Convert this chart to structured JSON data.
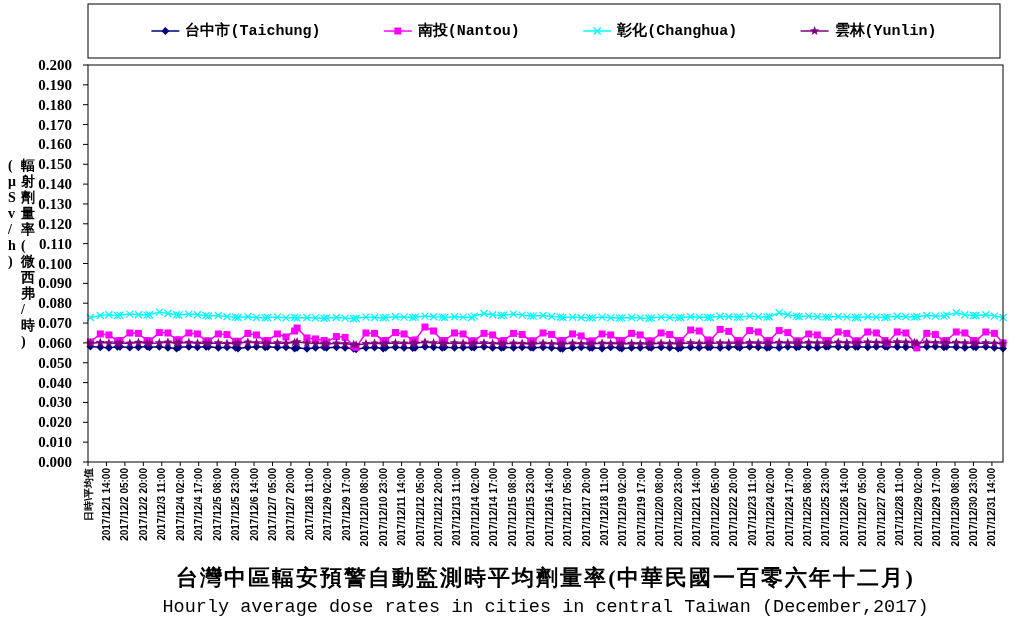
{
  "chart_data": {
    "type": "line",
    "title": "台灣中區輻安預警自動監測時平均劑量率(中華民國一百零六年十二月)",
    "subtitle": "Hourly average dose rates in cities in central Taiwan (December,2017)",
    "ylabel": "輻射劑量率(微西弗/時)\n(μSv/h)",
    "xlim": [
      "2017-11-30T23:00",
      "2017-12-31T23:00"
    ],
    "xticks": [
      {
        "value": "2017-11-30T23:00",
        "label": "日時\\平均值"
      },
      {
        "value": "2017-12-01T14:00",
        "label": "2017/12/1 14:00"
      },
      {
        "value": "2017-12-02T05:00",
        "label": "2017/12/2 05:00"
      },
      {
        "value": "2017-12-02T20:00",
        "label": "2017/12/2 20:00"
      },
      {
        "value": "2017-12-03T11:00",
        "label": "2017/12/3 11:00"
      },
      {
        "value": "2017-12-04T02:00",
        "label": "2017/12/4 02:00"
      },
      {
        "value": "2017-12-04T17:00",
        "label": "2017/12/4 17:00"
      },
      {
        "value": "2017-12-05T08:00",
        "label": "2017/12/5 08:00"
      },
      {
        "value": "2017-12-05T23:00",
        "label": "2017/12/5 23:00"
      },
      {
        "value": "2017-12-06T14:00",
        "label": "2017/12/6 14:00"
      },
      {
        "value": "2017-12-07T05:00",
        "label": "2017/12/7 05:00"
      },
      {
        "value": "2017-12-07T20:00",
        "label": "2017/12/7 20:00"
      },
      {
        "value": "2017-12-08T11:00",
        "label": "2017/12/8 11:00"
      },
      {
        "value": "2017-12-09T02:00",
        "label": "2017/12/9 02:00"
      },
      {
        "value": "2017-12-09T17:00",
        "label": "2017/12/9 17:00"
      },
      {
        "value": "2017-12-10T08:00",
        "label": "2017/12/10 08:00"
      },
      {
        "value": "2017-12-10T23:00",
        "label": "2017/12/10 23:00"
      },
      {
        "value": "2017-12-11T14:00",
        "label": "2017/12/11 14:00"
      },
      {
        "value": "2017-12-12T05:00",
        "label": "2017/12/12 05:00"
      },
      {
        "value": "2017-12-12T20:00",
        "label": "2017/12/12 20:00"
      },
      {
        "value": "2017-12-13T11:00",
        "label": "2017/12/13 11:00"
      },
      {
        "value": "2017-12-14T02:00",
        "label": "2017/12/14 02:00"
      },
      {
        "value": "2017-12-14T17:00",
        "label": "2017/12/14 17:00"
      },
      {
        "value": "2017-12-15T08:00",
        "label": "2017/12/15 08:00"
      },
      {
        "value": "2017-12-15T23:00",
        "label": "2017/12/15 23:00"
      },
      {
        "value": "2017-12-16T14:00",
        "label": "2017/12/16 14:00"
      },
      {
        "value": "2017-12-17T05:00",
        "label": "2017/12/17 05:00"
      },
      {
        "value": "2017-12-17T20:00",
        "label": "2017/12/17 20:00"
      },
      {
        "value": "2017-12-18T11:00",
        "label": "2017/12/18 11:00"
      },
      {
        "value": "2017-12-19T02:00",
        "label": "2017/12/19 02:00"
      },
      {
        "value": "2017-12-19T17:00",
        "label": "2017/12/19 17:00"
      },
      {
        "value": "2017-12-20T08:00",
        "label": "2017/12/20 08:00"
      },
      {
        "value": "2017-12-20T23:00",
        "label": "2017/12/20 23:00"
      },
      {
        "value": "2017-12-21T14:00",
        "label": "2017/12/21 14:00"
      },
      {
        "value": "2017-12-22T05:00",
        "label": "2017/12/22 05:00"
      },
      {
        "value": "2017-12-22T20:00",
        "label": "2017/12/22 20:00"
      },
      {
        "value": "2017-12-23T11:00",
        "label": "2017/12/23 11:00"
      },
      {
        "value": "2017-12-24T02:00",
        "label": "2017/12/24 02:00"
      },
      {
        "value": "2017-12-24T17:00",
        "label": "2017/12/24 17:00"
      },
      {
        "value": "2017-12-25T08:00",
        "label": "2017/12/25 08:00"
      },
      {
        "value": "2017-12-25T23:00",
        "label": "2017/12/25 23:00"
      },
      {
        "value": "2017-12-26T14:00",
        "label": "2017/12/26 14:00"
      },
      {
        "value": "2017-12-27T05:00",
        "label": "2017/12/27 05:00"
      },
      {
        "value": "2017-12-27T20:00",
        "label": "2017/12/27 20:00"
      },
      {
        "value": "2017-12-28T11:00",
        "label": "2017/12/28 11:00"
      },
      {
        "value": "2017-12-29T02:00",
        "label": "2017/12/29 02:00"
      },
      {
        "value": "2017-12-29T17:00",
        "label": "2017/12/29 17:00"
      },
      {
        "value": "2017-12-30T08:00",
        "label": "2017/12/30 08:00"
      },
      {
        "value": "2017-12-30T23:00",
        "label": "2017/12/30 23:00"
      },
      {
        "value": "2017-12-31T14:00",
        "label": "2017/12/31 14:00"
      }
    ],
    "ylim": [
      0,
      0.2
    ],
    "yticks": [
      {
        "value": 0,
        "label": "0.000"
      },
      {
        "value": 0.01,
        "label": "0.010"
      },
      {
        "value": 0.02,
        "label": "0.020"
      },
      {
        "value": 0.03,
        "label": "0.030"
      },
      {
        "value": 0.04,
        "label": "0.040"
      },
      {
        "value": 0.05,
        "label": "0.050"
      },
      {
        "value": 0.06,
        "label": "0.060"
      },
      {
        "value": 0.07,
        "label": "0.070"
      },
      {
        "value": 0.08,
        "label": "0.080"
      },
      {
        "value": 0.09,
        "label": "0.090"
      },
      {
        "value": 0.1,
        "label": "0.100"
      },
      {
        "value": 0.11,
        "label": "0.110"
      },
      {
        "value": 0.12,
        "label": "0.120"
      },
      {
        "value": 0.13,
        "label": "0.130"
      },
      {
        "value": 0.14,
        "label": "0.140"
      },
      {
        "value": 0.15,
        "label": "0.150"
      },
      {
        "value": 0.16,
        "label": "0.160"
      },
      {
        "value": 0.17,
        "label": "0.170"
      },
      {
        "value": 0.18,
        "label": "0.180"
      },
      {
        "value": 0.19,
        "label": "0.190"
      },
      {
        "value": 0.2,
        "label": "0.200"
      }
    ],
    "grid": false,
    "legend": "top",
    "line_style": "solid",
    "x": [
      "2017-12-01T01:00",
      "2017-12-01T09:00",
      "2017-12-01T16:00",
      "2017-12-01T23:00",
      "2017-12-02T01:00",
      "2017-12-02T09:00",
      "2017-12-02T16:00",
      "2017-12-02T23:00",
      "2017-12-03T01:00",
      "2017-12-03T09:00",
      "2017-12-03T16:00",
      "2017-12-03T23:00",
      "2017-12-04T01:00",
      "2017-12-04T09:00",
      "2017-12-04T16:00",
      "2017-12-04T23:00",
      "2017-12-05T01:00",
      "2017-12-05T09:00",
      "2017-12-05T16:00",
      "2017-12-05T23:00",
      "2017-12-06T01:00",
      "2017-12-06T09:00",
      "2017-12-06T16:00",
      "2017-12-06T23:00",
      "2017-12-07T01:00",
      "2017-12-07T09:00",
      "2017-12-07T16:00",
      "2017-12-07T23:00",
      "2017-12-08T01:00",
      "2017-12-08T09:00",
      "2017-12-08T16:00",
      "2017-12-08T23:00",
      "2017-12-09T01:00",
      "2017-12-09T09:00",
      "2017-12-09T16:00",
      "2017-12-09T23:00",
      "2017-12-10T01:00",
      "2017-12-10T09:00",
      "2017-12-10T16:00",
      "2017-12-10T23:00",
      "2017-12-11T01:00",
      "2017-12-11T09:00",
      "2017-12-11T16:00",
      "2017-12-11T23:00",
      "2017-12-12T01:00",
      "2017-12-12T09:00",
      "2017-12-12T16:00",
      "2017-12-12T23:00",
      "2017-12-13T01:00",
      "2017-12-13T09:00",
      "2017-12-13T16:00",
      "2017-12-13T23:00",
      "2017-12-14T01:00",
      "2017-12-14T09:00",
      "2017-12-14T16:00",
      "2017-12-14T23:00",
      "2017-12-15T01:00",
      "2017-12-15T09:00",
      "2017-12-15T16:00",
      "2017-12-15T23:00",
      "2017-12-16T01:00",
      "2017-12-16T09:00",
      "2017-12-16T16:00",
      "2017-12-16T23:00",
      "2017-12-17T01:00",
      "2017-12-17T09:00",
      "2017-12-17T16:00",
      "2017-12-17T23:00",
      "2017-12-18T01:00",
      "2017-12-18T09:00",
      "2017-12-18T16:00",
      "2017-12-18T23:00",
      "2017-12-19T01:00",
      "2017-12-19T09:00",
      "2017-12-19T16:00",
      "2017-12-19T23:00",
      "2017-12-20T01:00",
      "2017-12-20T09:00",
      "2017-12-20T16:00",
      "2017-12-20T23:00",
      "2017-12-21T01:00",
      "2017-12-21T09:00",
      "2017-12-21T16:00",
      "2017-12-21T23:00",
      "2017-12-22T01:00",
      "2017-12-22T09:00",
      "2017-12-22T16:00",
      "2017-12-22T23:00",
      "2017-12-23T01:00",
      "2017-12-23T09:00",
      "2017-12-23T16:00",
      "2017-12-23T23:00",
      "2017-12-24T01:00",
      "2017-12-24T09:00",
      "2017-12-24T16:00",
      "2017-12-24T23:00",
      "2017-12-25T01:00",
      "2017-12-25T09:00",
      "2017-12-25T16:00",
      "2017-12-25T23:00",
      "2017-12-26T01:00",
      "2017-12-26T09:00",
      "2017-12-26T16:00",
      "2017-12-26T23:00",
      "2017-12-27T01:00",
      "2017-12-27T09:00",
      "2017-12-27T16:00",
      "2017-12-27T23:00",
      "2017-12-28T01:00",
      "2017-12-28T09:00",
      "2017-12-28T16:00",
      "2017-12-28T23:00",
      "2017-12-29T01:00",
      "2017-12-29T09:00",
      "2017-12-29T16:00",
      "2017-12-29T23:00",
      "2017-12-30T01:00",
      "2017-12-30T09:00",
      "2017-12-30T16:00",
      "2017-12-30T23:00",
      "2017-12-31T01:00",
      "2017-12-31T09:00",
      "2017-12-31T16:00",
      "2017-12-31T23:00"
    ],
    "series": [
      {
        "name": "台中市(Taichung)",
        "color": "#000080",
        "marker": "diamond",
        "values": [
          0.0582,
          0.0578,
          0.0575,
          0.058,
          0.058,
          0.0577,
          0.0578,
          0.0582,
          0.0578,
          0.058,
          0.0576,
          0.0572,
          0.0578,
          0.058,
          0.0578,
          0.058,
          0.058,
          0.0576,
          0.0578,
          0.0575,
          0.0572,
          0.0578,
          0.058,
          0.0578,
          0.058,
          0.0577,
          0.0578,
          0.0572,
          0.0575,
          0.057,
          0.0575,
          0.0578,
          0.0576,
          0.0578,
          0.0575,
          0.057,
          0.0568,
          0.0575,
          0.0577,
          0.0572,
          0.0575,
          0.0578,
          0.0576,
          0.0574,
          0.0576,
          0.058,
          0.0578,
          0.0575,
          0.0578,
          0.0575,
          0.0577,
          0.0578,
          0.0577,
          0.058,
          0.0576,
          0.0575,
          0.0578,
          0.0576,
          0.0578,
          0.0577,
          0.0575,
          0.0578,
          0.0576,
          0.0572,
          0.057,
          0.0575,
          0.0578,
          0.0575,
          0.0576,
          0.0572,
          0.0578,
          0.0575,
          0.0572,
          0.0576,
          0.0575,
          0.0578,
          0.0575,
          0.0578,
          0.0576,
          0.0572,
          0.0576,
          0.0578,
          0.0575,
          0.0578,
          0.0578,
          0.0575,
          0.0578,
          0.058,
          0.0576,
          0.058,
          0.0578,
          0.0575,
          0.0578,
          0.0576,
          0.058,
          0.0578,
          0.058,
          0.0578,
          0.0576,
          0.058,
          0.0582,
          0.0579,
          0.0578,
          0.058,
          0.058,
          0.0578,
          0.058,
          0.0582,
          0.058,
          0.0579,
          0.0578,
          0.058,
          0.0578,
          0.058,
          0.0582,
          0.0578,
          0.058,
          0.0578,
          0.0576,
          0.058,
          0.0578,
          0.058,
          0.0576,
          0.0572
        ]
      },
      {
        "name": "南投(Nantou)",
        "color": "#ff00ff",
        "marker": "square",
        "values": [
          0.0605,
          0.0645,
          0.064,
          0.061,
          0.0612,
          0.065,
          0.0648,
          0.0612,
          0.061,
          0.0652,
          0.065,
          0.0615,
          0.0615,
          0.065,
          0.0645,
          0.061,
          0.061,
          0.0645,
          0.0642,
          0.0608,
          0.0608,
          0.0648,
          0.064,
          0.061,
          0.0612,
          0.0645,
          0.063,
          0.066,
          0.0675,
          0.0625,
          0.062,
          0.0612,
          0.0605,
          0.0632,
          0.0628,
          0.0585,
          0.0578,
          0.065,
          0.0648,
          0.061,
          0.0612,
          0.0652,
          0.0645,
          0.0612,
          0.0615,
          0.068,
          0.066,
          0.0612,
          0.0612,
          0.065,
          0.0645,
          0.061,
          0.061,
          0.0648,
          0.064,
          0.0608,
          0.0612,
          0.0648,
          0.0642,
          0.061,
          0.061,
          0.065,
          0.0642,
          0.061,
          0.0612,
          0.0645,
          0.0635,
          0.0608,
          0.061,
          0.0645,
          0.064,
          0.0612,
          0.0612,
          0.0648,
          0.064,
          0.061,
          0.061,
          0.065,
          0.0642,
          0.0612,
          0.0612,
          0.0665,
          0.066,
          0.0615,
          0.0612,
          0.0668,
          0.0658,
          0.0612,
          0.061,
          0.0662,
          0.0655,
          0.0612,
          0.0612,
          0.0662,
          0.0652,
          0.061,
          0.061,
          0.0645,
          0.064,
          0.0612,
          0.0612,
          0.0655,
          0.0648,
          0.061,
          0.061,
          0.0655,
          0.065,
          0.0612,
          0.06,
          0.0655,
          0.065,
          0.0598,
          0.0575,
          0.0648,
          0.0642,
          0.061,
          0.0612,
          0.0655,
          0.065,
          0.0612,
          0.061,
          0.0655,
          0.0648,
          0.06
        ]
      },
      {
        "name": "彰化(Changhua)",
        "color": "#00ffff",
        "marker": "cross",
        "values": [
          0.0728,
          0.0738,
          0.0742,
          0.0738,
          0.074,
          0.0745,
          0.0742,
          0.074,
          0.0742,
          0.0755,
          0.0748,
          0.0742,
          0.074,
          0.0745,
          0.0742,
          0.0738,
          0.0735,
          0.0738,
          0.0732,
          0.073,
          0.0728,
          0.0732,
          0.0728,
          0.0726,
          0.0728,
          0.073,
          0.0726,
          0.0728,
          0.0725,
          0.0728,
          0.0726,
          0.0724,
          0.0726,
          0.0728,
          0.0725,
          0.0722,
          0.0724,
          0.073,
          0.0728,
          0.0726,
          0.0728,
          0.0732,
          0.073,
          0.0728,
          0.073,
          0.0735,
          0.0732,
          0.073,
          0.0728,
          0.0732,
          0.073,
          0.0728,
          0.0735,
          0.0748,
          0.0742,
          0.0738,
          0.074,
          0.0745,
          0.074,
          0.0736,
          0.0735,
          0.0738,
          0.0733,
          0.073,
          0.0728,
          0.073,
          0.0728,
          0.0726,
          0.0726,
          0.073,
          0.0727,
          0.0725,
          0.0726,
          0.0728,
          0.0726,
          0.0724,
          0.0725,
          0.073,
          0.0728,
          0.0726,
          0.0728,
          0.0732,
          0.073,
          0.0728,
          0.0728,
          0.0734,
          0.0732,
          0.073,
          0.073,
          0.0735,
          0.0732,
          0.073,
          0.0732,
          0.0752,
          0.0742,
          0.0735,
          0.0732,
          0.0735,
          0.0732,
          0.073,
          0.073,
          0.0733,
          0.073,
          0.0728,
          0.0728,
          0.0732,
          0.073,
          0.0728,
          0.073,
          0.0734,
          0.0732,
          0.073,
          0.0732,
          0.0738,
          0.0735,
          0.0735,
          0.074,
          0.0752,
          0.0742,
          0.0738,
          0.0738,
          0.0742,
          0.0735,
          0.0728
        ]
      },
      {
        "name": "雲林(Yunlin)",
        "color": "#800080",
        "marker": "star",
        "values": [
          0.0598,
          0.0602,
          0.06,
          0.0598,
          0.06,
          0.0598,
          0.0602,
          0.06,
          0.0598,
          0.06,
          0.0603,
          0.0598,
          0.06,
          0.0602,
          0.0598,
          0.06,
          0.0598,
          0.06,
          0.0597,
          0.0598,
          0.06,
          0.0603,
          0.06,
          0.0598,
          0.0598,
          0.06,
          0.0598,
          0.0602,
          0.0605,
          0.06,
          0.0598,
          0.0596,
          0.0595,
          0.0598,
          0.0596,
          0.0592,
          0.059,
          0.0596,
          0.0598,
          0.0596,
          0.0598,
          0.06,
          0.0598,
          0.0597,
          0.0598,
          0.0603,
          0.06,
          0.0598,
          0.0597,
          0.06,
          0.0598,
          0.0596,
          0.0598,
          0.06,
          0.0597,
          0.0596,
          0.0596,
          0.0598,
          0.0597,
          0.0595,
          0.0596,
          0.0598,
          0.0596,
          0.0594,
          0.0595,
          0.0598,
          0.0596,
          0.0595,
          0.0596,
          0.0598,
          0.0597,
          0.0596,
          0.0595,
          0.0597,
          0.0596,
          0.0595,
          0.0596,
          0.0598,
          0.0597,
          0.0595,
          0.0597,
          0.06,
          0.0598,
          0.0597,
          0.0598,
          0.06,
          0.0599,
          0.0598,
          0.0598,
          0.0601,
          0.06,
          0.0598,
          0.0599,
          0.0602,
          0.06,
          0.0599,
          0.06,
          0.0602,
          0.06,
          0.0599,
          0.06,
          0.0603,
          0.0601,
          0.06,
          0.0601,
          0.0604,
          0.0602,
          0.06,
          0.0602,
          0.0605,
          0.0603,
          0.0601,
          0.0598,
          0.0603,
          0.0601,
          0.06,
          0.06,
          0.0602,
          0.06,
          0.0598,
          0.0598,
          0.06,
          0.0598,
          0.0596
        ]
      }
    ]
  }
}
